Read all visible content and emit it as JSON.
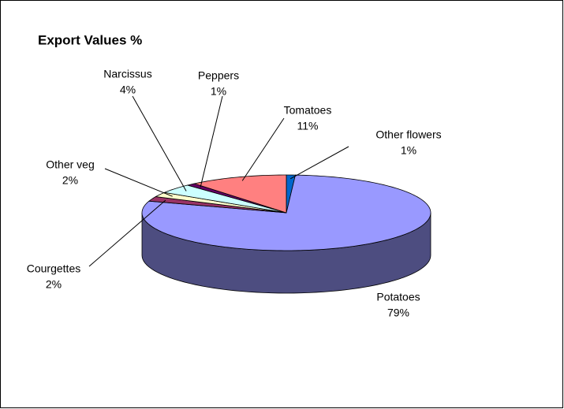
{
  "chart_data": {
    "type": "pie",
    "title": "Export Values %",
    "categories": [
      "Other flowers",
      "Potatoes",
      "Courgettes",
      "Other veg",
      "Narcissus",
      "Peppers",
      "Tomatoes"
    ],
    "values": [
      1,
      79,
      2,
      2,
      4,
      1,
      11
    ],
    "value_labels": [
      "1%",
      "79%",
      "2%",
      "2%",
      "4%",
      "1%",
      "11%"
    ],
    "colors": [
      "#0066cc",
      "#9999ff",
      "#993366",
      "#ffffcc",
      "#ccffff",
      "#660066",
      "#ff8080"
    ]
  }
}
